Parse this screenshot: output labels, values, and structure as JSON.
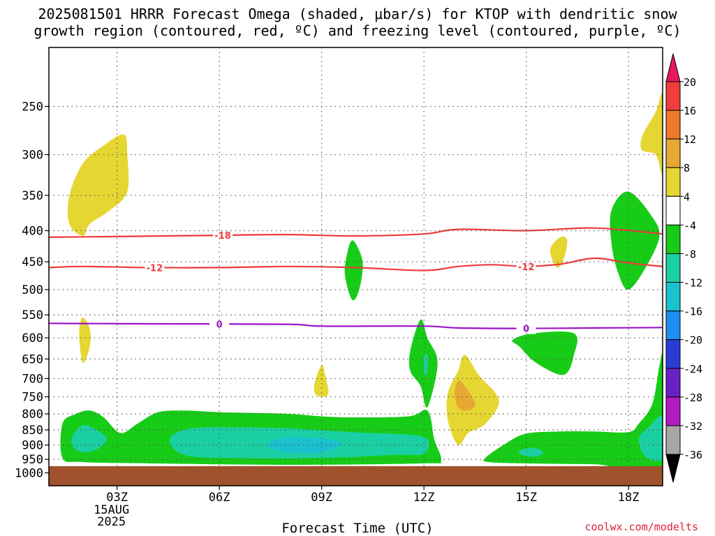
{
  "title_line1": "2025081501 HRRR Forecast Omega (shaded, μbar/s) for KTOP with dendritic snow",
  "title_line2": "growth region (contoured, red, ºC) and freezing level (contoured, purple, ºC)",
  "credit": "coolwx.com/modelts",
  "chart_data": {
    "type": "heatmap",
    "title": "2025081501 HRRR Forecast Omega (shaded, μbar/s) for KTOP with dendritic snow growth region (contoured, red, ºC) and freezing level (contoured, purple, ºC)",
    "xlabel": "Forecast Time (UTC)",
    "ylabel": "",
    "x_range_hours": [
      1,
      19
    ],
    "y_range_hPa": [
      200,
      1050
    ],
    "y_ticks": [
      250,
      300,
      350,
      400,
      450,
      500,
      550,
      600,
      650,
      700,
      750,
      800,
      850,
      900,
      950,
      1000
    ],
    "x_ticks": [
      {
        "hour": 3,
        "label": "03Z",
        "sub": [
          "15AUG",
          "2025"
        ]
      },
      {
        "hour": 6,
        "label": "06Z",
        "sub": []
      },
      {
        "hour": 9,
        "label": "09Z",
        "sub": []
      },
      {
        "hour": 12,
        "label": "12Z",
        "sub": []
      },
      {
        "hour": 15,
        "label": "15Z",
        "sub": []
      },
      {
        "hour": 18,
        "label": "18Z",
        "sub": []
      }
    ],
    "grid": true,
    "ground_level_hPa": 975,
    "colorbar": {
      "levels": [
        20,
        16,
        12,
        8,
        4,
        -4,
        -8,
        -12,
        -16,
        -20,
        -24,
        -28,
        -32,
        -36
      ],
      "colors": [
        "#e8185c",
        "#f03c3c",
        "#ee7a28",
        "#e7a834",
        "#e6d632",
        "#ffffff",
        "#17cc17",
        "#1bcfa4",
        "#1bc1cf",
        "#1e8ff0",
        "#2b3cd6",
        "#6b1fc9",
        "#b21bc2",
        "#a7a7a7",
        "#000000"
      ]
    },
    "contours": [
      {
        "name": "-18",
        "color": "#ee3a3a",
        "points": [
          [
            1,
            410
          ],
          [
            3,
            409
          ],
          [
            6,
            407
          ],
          [
            8,
            406
          ],
          [
            10,
            408
          ],
          [
            12,
            405
          ],
          [
            13,
            398
          ],
          [
            15,
            400
          ],
          [
            17,
            396
          ],
          [
            19,
            405
          ]
        ],
        "label_hours": [
          6.1
        ]
      },
      {
        "name": "-12",
        "color": "#ee3a3a",
        "points": [
          [
            1,
            460
          ],
          [
            2,
            458
          ],
          [
            4,
            460
          ],
          [
            6,
            460
          ],
          [
            8,
            458
          ],
          [
            10,
            460
          ],
          [
            12,
            465
          ],
          [
            13,
            458
          ],
          [
            14,
            455
          ],
          [
            15,
            458
          ],
          [
            16,
            454
          ],
          [
            17,
            444
          ],
          [
            18,
            452
          ],
          [
            19,
            458
          ]
        ],
        "label_hours": [
          4.1,
          15.0
        ]
      },
      {
        "name": "0",
        "color": "#9a12c8",
        "points": [
          [
            1,
            568
          ],
          [
            4,
            569
          ],
          [
            8,
            570
          ],
          [
            9,
            574
          ],
          [
            12,
            574
          ],
          [
            13,
            578
          ],
          [
            15,
            579
          ],
          [
            17,
            578
          ],
          [
            19,
            577
          ]
        ],
        "label_hours": [
          6.0,
          15.0
        ]
      }
    ],
    "omega_regions": [
      {
        "value_band": "4 to 8",
        "color": "#e6d632",
        "points": [
          [
            1.6,
            350
          ],
          [
            2.0,
            310
          ],
          [
            2.6,
            290
          ],
          [
            3.2,
            278
          ],
          [
            3.3,
            300
          ],
          [
            3.3,
            345
          ],
          [
            2.8,
            370
          ],
          [
            2.2,
            390
          ],
          [
            2.0,
            408
          ],
          [
            1.6,
            390
          ]
        ]
      },
      {
        "value_band": "4 to 8",
        "color": "#e6d632",
        "points": [
          [
            2.0,
            555
          ],
          [
            2.2,
            580
          ],
          [
            2.2,
            620
          ],
          [
            2.0,
            660
          ],
          [
            1.9,
            610
          ],
          [
            1.9,
            575
          ]
        ]
      },
      {
        "value_band": "4 to 8",
        "color": "#e6d632",
        "points": [
          [
            8.8,
            710
          ],
          [
            9.0,
            665
          ],
          [
            9.1,
            690
          ],
          [
            9.2,
            740
          ],
          [
            9.0,
            750
          ],
          [
            8.8,
            740
          ]
        ]
      },
      {
        "value_band": "4 to 8",
        "color": "#e6d632",
        "points": [
          [
            12.7,
            740
          ],
          [
            13.0,
            680
          ],
          [
            13.2,
            640
          ],
          [
            13.6,
            690
          ],
          [
            14.2,
            760
          ],
          [
            13.8,
            830
          ],
          [
            13.3,
            860
          ],
          [
            13.0,
            900
          ],
          [
            12.7,
            820
          ]
        ]
      },
      {
        "value_band": "8 to 12",
        "color": "#e7a834",
        "points": [
          [
            12.9,
            740
          ],
          [
            13.0,
            705
          ],
          [
            13.2,
            720
          ],
          [
            13.5,
            770
          ],
          [
            13.3,
            790
          ],
          [
            13.0,
            780
          ]
        ]
      },
      {
        "value_band": "4 to 8",
        "color": "#e6d632",
        "points": [
          [
            15.7,
            430
          ],
          [
            16.0,
            410
          ],
          [
            16.2,
            415
          ],
          [
            16.1,
            445
          ],
          [
            15.9,
            460
          ]
        ]
      },
      {
        "value_band": "4 to 8",
        "color": "#e6d632",
        "points": [
          [
            18.4,
            280
          ],
          [
            18.8,
            255
          ],
          [
            19.0,
            240
          ],
          [
            19.0,
            320
          ],
          [
            18.8,
            300
          ],
          [
            18.4,
            295
          ]
        ]
      },
      {
        "value_band": "-4 to -8",
        "color": "#17cc17",
        "points": [
          [
            9.7,
            450
          ],
          [
            9.9,
            415
          ],
          [
            10.2,
            450
          ],
          [
            10.1,
            500
          ],
          [
            9.9,
            520
          ],
          [
            9.7,
            480
          ]
        ]
      },
      {
        "value_band": "-4 to -8",
        "color": "#17cc17",
        "points": [
          [
            11.6,
            630
          ],
          [
            11.9,
            560
          ],
          [
            12.1,
            600
          ],
          [
            12.4,
            660
          ],
          [
            12.1,
            780
          ],
          [
            11.9,
            720
          ],
          [
            11.6,
            680
          ]
        ]
      },
      {
        "value_band": "-8 to -12",
        "color": "#1bcfa4",
        "points": [
          [
            12.0,
            645
          ],
          [
            12.1,
            640
          ],
          [
            12.1,
            680
          ],
          [
            12.0,
            690
          ]
        ]
      },
      {
        "value_band": "-4 to -8",
        "color": "#17cc17",
        "points": [
          [
            14.6,
            605
          ],
          [
            15.2,
            590
          ],
          [
            16.4,
            590
          ],
          [
            16.4,
            640
          ],
          [
            16.1,
            690
          ],
          [
            15.3,
            660
          ],
          [
            14.8,
            620
          ]
        ]
      },
      {
        "value_band": "-4 to -8",
        "color": "#17cc17",
        "points": [
          [
            17.5,
            370
          ],
          [
            18.0,
            345
          ],
          [
            18.7,
            380
          ],
          [
            18.9,
            410
          ],
          [
            18.5,
            460
          ],
          [
            18.0,
            500
          ],
          [
            17.7,
            470
          ],
          [
            17.5,
            420
          ]
        ]
      },
      {
        "value_band": "-4 to -8",
        "color": "#17cc17",
        "points": [
          [
            1.4,
            830
          ],
          [
            1.8,
            800
          ],
          [
            2.2,
            790
          ],
          [
            2.6,
            810
          ],
          [
            3.1,
            860
          ],
          [
            3.6,
            830
          ],
          [
            4.2,
            795
          ],
          [
            5.0,
            790
          ],
          [
            6.0,
            795
          ],
          [
            8.0,
            800
          ],
          [
            9.5,
            810
          ],
          [
            11.5,
            808
          ],
          [
            12.1,
            790
          ],
          [
            12.3,
            880
          ],
          [
            12.5,
            955
          ],
          [
            12.0,
            965
          ],
          [
            8.0,
            970
          ],
          [
            4.0,
            965
          ],
          [
            2.0,
            960
          ],
          [
            1.4,
            945
          ]
        ]
      },
      {
        "value_band": "-8 to -12",
        "color": "#1bcfa4",
        "points": [
          [
            1.7,
            870
          ],
          [
            2.0,
            835
          ],
          [
            2.4,
            850
          ],
          [
            2.7,
            880
          ],
          [
            2.4,
            915
          ],
          [
            2.0,
            925
          ],
          [
            1.7,
            905
          ]
        ]
      },
      {
        "value_band": "-8 to -12",
        "color": "#1bcfa4",
        "points": [
          [
            4.6,
            870
          ],
          [
            5.2,
            845
          ],
          [
            6.5,
            842
          ],
          [
            8.0,
            845
          ],
          [
            10.0,
            858
          ],
          [
            11.5,
            865
          ],
          [
            12.1,
            880
          ],
          [
            12.0,
            930
          ],
          [
            11.0,
            935
          ],
          [
            9.0,
            945
          ],
          [
            6.0,
            945
          ],
          [
            5.0,
            935
          ],
          [
            4.6,
            905
          ]
        ]
      },
      {
        "value_band": "-12 to -16",
        "color": "#1bc1cf",
        "points": [
          [
            7.5,
            890
          ],
          [
            8.0,
            875
          ],
          [
            9.0,
            878
          ],
          [
            9.6,
            895
          ],
          [
            9.0,
            925
          ],
          [
            8.0,
            925
          ],
          [
            7.5,
            910
          ]
        ]
      },
      {
        "value_band": "-4 to -8",
        "color": "#17cc17",
        "points": [
          [
            13.8,
            945
          ],
          [
            14.4,
            895
          ],
          [
            15.0,
            862
          ],
          [
            16.0,
            855
          ],
          [
            17.0,
            855
          ],
          [
            18.0,
            857
          ],
          [
            18.3,
            830
          ],
          [
            18.7,
            770
          ],
          [
            18.9,
            670
          ],
          [
            19.0,
            655
          ],
          [
            19.0,
            970
          ],
          [
            17.0,
            968
          ],
          [
            15.0,
            965
          ],
          [
            13.9,
            960
          ]
        ]
      },
      {
        "value_band": "-8 to -12",
        "color": "#1bcfa4",
        "points": [
          [
            14.8,
            920
          ],
          [
            15.2,
            910
          ],
          [
            15.5,
            925
          ],
          [
            15.3,
            940
          ],
          [
            14.9,
            935
          ]
        ]
      },
      {
        "value_band": "-8 to -12",
        "color": "#1bcfa4",
        "points": [
          [
            18.3,
            880
          ],
          [
            18.6,
            840
          ],
          [
            19.0,
            810
          ],
          [
            19.0,
            945
          ],
          [
            18.5,
            940
          ]
        ]
      }
    ]
  }
}
